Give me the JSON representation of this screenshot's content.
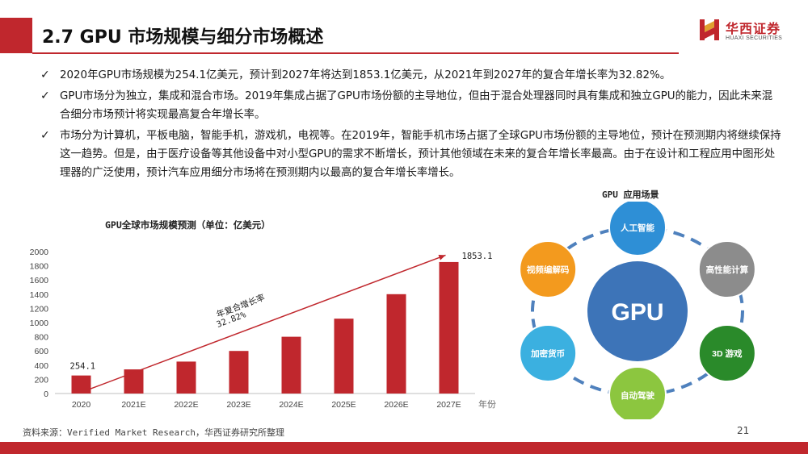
{
  "header": {
    "title": "2.7  GPU 市场规模与细分市场概述",
    "logo_cn": "华西证券",
    "logo_en": "HUAXI SECURITIES",
    "accent": "#c0272d"
  },
  "bullets": [
    "2020年GPU市场规模为254.1亿美元，预计到2027年将达到1853.1亿美元，从2021年到2027年的复合年增长率为32.82%。",
    "GPU市场分为独立，集成和混合市场。2019年集成占据了GPU市场份额的主导地位，但由于混合处理器同时具有集成和独立GPU的能力，因此未来混合细分市场预计将实现最高复合年增长率。",
    "市场分为计算机，平板电脑，智能手机，游戏机，电视等。在2019年，智能手机市场占据了全球GPU市场份额的主导地位，预计在预测期内将继续保持这一趋势。但是，由于医疗设备等其他设备中对小型GPU的需求不断增长，预计其他领域在未来的复合年增长率最高。由于在设计和工程应用中图形处理器的广泛使用，预计汽车应用细分市场将在预测期内以最高的复合年增长率增长。"
  ],
  "chart_data": {
    "type": "bar",
    "title": "GPU全球市场规模预测（单位：亿美元）",
    "categories": [
      "2020",
      "2021E",
      "2022E",
      "2023E",
      "2024E",
      "2025E",
      "2026E",
      "2027E"
    ],
    "values": [
      254.1,
      340,
      450,
      600,
      800,
      1055,
      1400,
      1853.1
    ],
    "xlabel": "年份",
    "ylabel": "",
    "ylim": [
      0,
      2000
    ],
    "yticks": [
      0,
      200,
      400,
      600,
      800,
      1000,
      1200,
      1400,
      1600,
      1800,
      2000
    ],
    "data_labels": {
      "0": "254.1",
      "7": "1853.1"
    },
    "annotation": {
      "line1": "年复合增长率",
      "line2": "32.82%"
    },
    "bar_color": "#c0272d",
    "grid": false
  },
  "applications": {
    "title": "GPU 应用场景",
    "center": "GPU",
    "items": [
      {
        "label": "人工智能",
        "color": "#2e8fd6"
      },
      {
        "label": "高性能计算",
        "color": "#8c8c8c"
      },
      {
        "label": "3D 游戏",
        "color": "#2a8a2a"
      },
      {
        "label": "自动驾驶",
        "color": "#8cc63f"
      },
      {
        "label": "加密货币",
        "color": "#3bb0e0"
      },
      {
        "label": "视频编解码",
        "color": "#f39a1e"
      }
    ]
  },
  "footer": {
    "source": "资料来源：Verified Market Research，华西证券研究所整理",
    "page": "21"
  }
}
